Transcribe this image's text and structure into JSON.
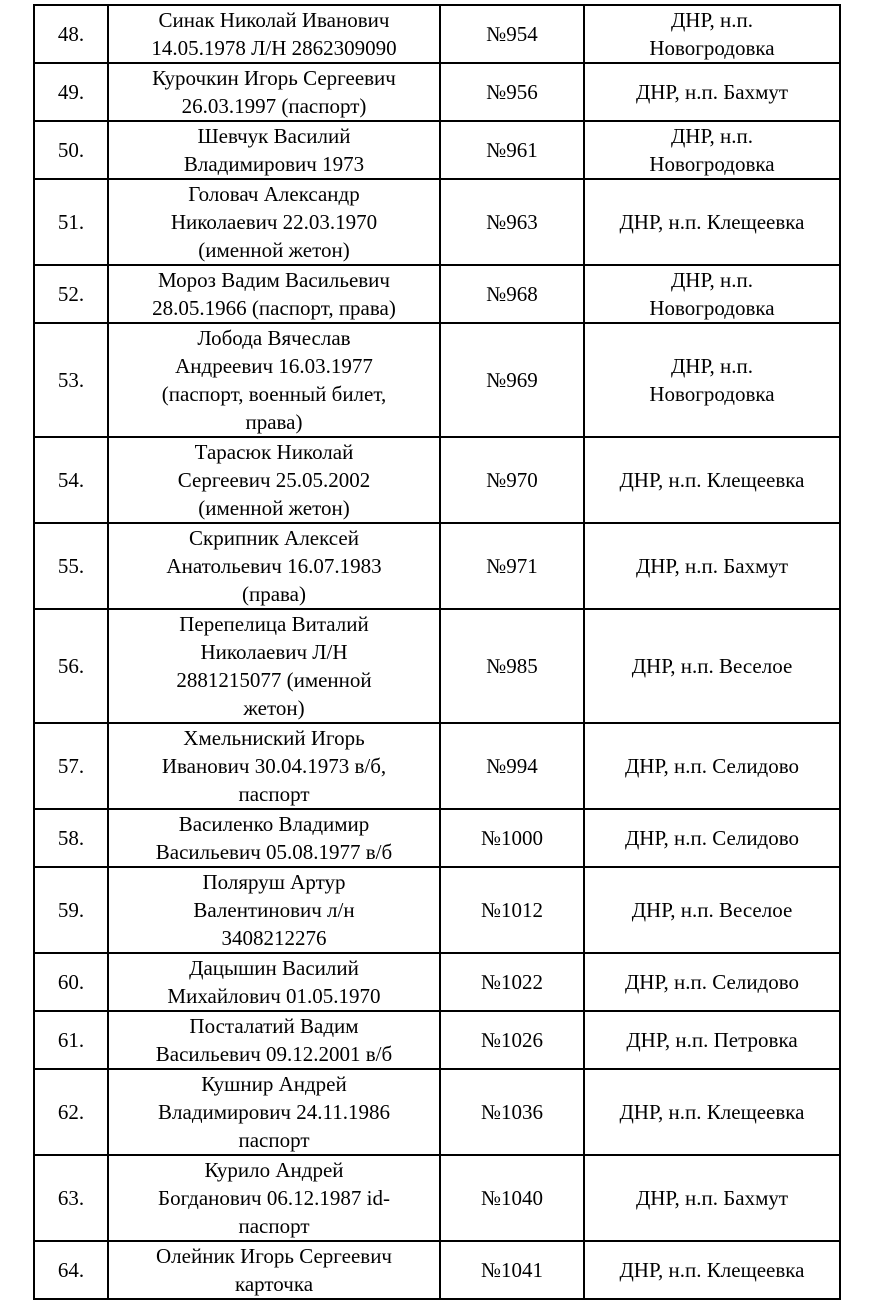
{
  "table": {
    "rows": [
      [
        "48.",
        "Синак Николай Иванович\n14.05.1978 Л/Н 2862309090",
        "№954",
        "ДНР, н.п.\nНовогродовка"
      ],
      [
        "49.",
        "Курочкин Игорь Сергеевич\n26.03.1997 (паспорт)",
        "№956",
        "ДНР, н.п. Бахмут"
      ],
      [
        "50.",
        "Шевчук Василий\nВладимирович 1973",
        "№961",
        "ДНР, н.п.\nНовогродовка"
      ],
      [
        "51.",
        "Головач Александр\nНиколаевич 22.03.1970\n(именной жетон)",
        "№963",
        "ДНР, н.п. Клещеевка"
      ],
      [
        "52.",
        "Мороз Вадим Васильевич\n28.05.1966 (паспорт, права)",
        "№968",
        "ДНР, н.п.\nНовогродовка"
      ],
      [
        "53.",
        "Лобода Вячеслав\nАндреевич 16.03.1977\n(паспорт, военный билет,\nправа)",
        "№969",
        "ДНР, н.п.\nНовогродовка"
      ],
      [
        "54.",
        "Тарасюк Николай\nСергеевич 25.05.2002\n(именной жетон)",
        "№970",
        "ДНР, н.п. Клещеевка"
      ],
      [
        "55.",
        "Скрипник Алексей\nАнатольевич 16.07.1983\n(права)",
        "№971",
        "ДНР, н.п. Бахмут"
      ],
      [
        "56.",
        "Перепелица Виталий\nНиколаевич Л/Н\n2881215077 (именной\nжетон)",
        "№985",
        "ДНР, н.п. Веселое"
      ],
      [
        "57.",
        "Хмельниский Игорь\nИванович 30.04.1973 в/б,\nпаспорт",
        "№994",
        "ДНР, н.п. Селидово"
      ],
      [
        "58.",
        "Василенко Владимир\nВасильевич 05.08.1977 в/б",
        "№1000",
        "ДНР, н.п. Селидово"
      ],
      [
        "59.",
        "Поляруш Артур\nВалентинович л/н\n3408212276",
        "№1012",
        "ДНР, н.п. Веселое"
      ],
      [
        "60.",
        "Дацышин Василий\nМихайлович 01.05.1970",
        "№1022",
        "ДНР, н.п. Селидово"
      ],
      [
        "61.",
        "Посталатий Вадим\nВасильевич 09.12.2001 в/б",
        "№1026",
        "ДНР, н.п. Петровка"
      ],
      [
        "62.",
        "Кушнир Андрей\nВладимирович 24.11.1986\nпаспорт",
        "№1036",
        "ДНР, н.п. Клещеевка"
      ],
      [
        "63.",
        "Курило Андрей\nБогданович 06.12.1987 id-\nпаспорт",
        "№1040",
        "ДНР, н.п. Бахмут"
      ],
      [
        "64.",
        "Олейник Игорь Сергеевич\nкарточка",
        "№1041",
        "ДНР, н.п. Клещеевка"
      ]
    ]
  }
}
